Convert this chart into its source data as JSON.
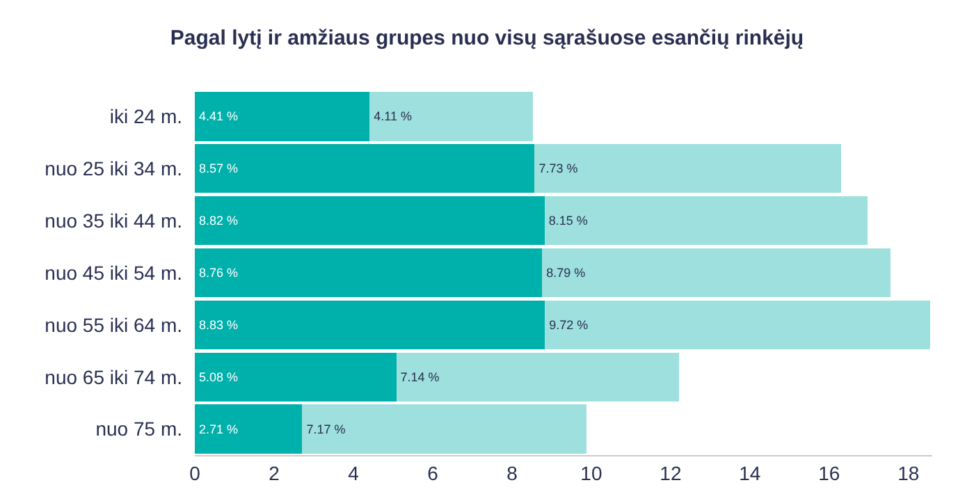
{
  "chart_data": {
    "type": "bar",
    "orientation": "horizontal",
    "stacked": true,
    "title": "Pagal lytį ir amžiaus grupes nuo visų sąrašuose esančių rinkėjų",
    "categories": [
      "iki 24 m.",
      "nuo 25 iki 34 m.",
      "nuo 35 iki 44 m.",
      "nuo 45 iki 54 m.",
      "nuo 55 iki 64 m.",
      "nuo 65 iki 74 m.",
      "nuo 75 m."
    ],
    "series": [
      {
        "color": "#00b0aa",
        "values": [
          4.41,
          8.57,
          8.82,
          8.76,
          8.83,
          5.08,
          2.71
        ],
        "value_labels": [
          "4.41 %",
          "8.57 %",
          "8.82 %",
          "8.76 %",
          "8.83 %",
          "5.08 %",
          "2.71 %"
        ]
      },
      {
        "color": "#9ee0dd",
        "values": [
          4.11,
          7.73,
          8.15,
          8.79,
          9.72,
          7.14,
          7.17
        ],
        "value_labels": [
          "4.11 %",
          "7.73 %",
          "8.15 %",
          "8.79 %",
          "9.72 %",
          "7.14 %",
          "7.17 %"
        ]
      }
    ],
    "xlim": [
      0,
      18.6
    ],
    "xticks": [
      0,
      2,
      4,
      6,
      8,
      10,
      12,
      14,
      16,
      18
    ],
    "legend": false
  }
}
